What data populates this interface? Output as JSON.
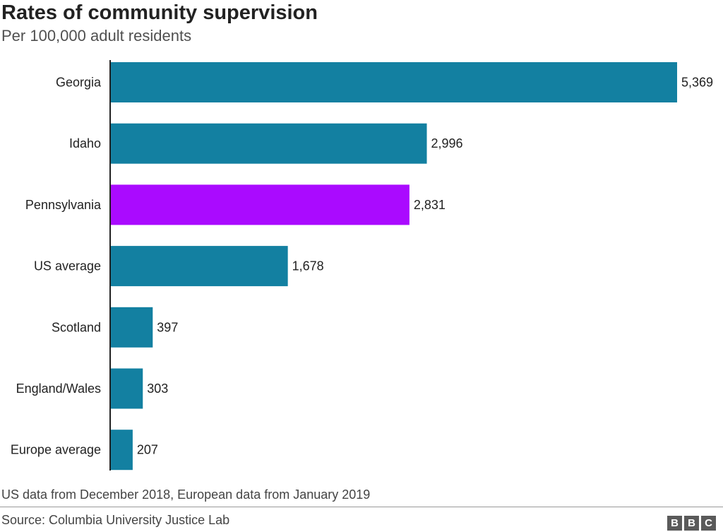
{
  "header": {
    "title": "Rates of community supervision",
    "subtitle": "Per 100,000 adult residents"
  },
  "footer": {
    "note": "US data from December 2018, European data from January 2019",
    "source": "Source: Columbia University Justice Lab",
    "logo": [
      "B",
      "B",
      "C"
    ]
  },
  "colors": {
    "bar": "#1380A1",
    "highlight": "#AA0AFF",
    "axis": "#222222"
  },
  "chart_data": {
    "type": "bar",
    "orientation": "horizontal",
    "title": "Rates of community supervision",
    "subtitle": "Per 100,000 adult residents",
    "categories": [
      "Georgia",
      "Idaho",
      "Pennsylvania",
      "US average",
      "Scotland",
      "England/Wales",
      "Europe average"
    ],
    "values": [
      5369,
      2996,
      2831,
      1678,
      397,
      303,
      207
    ],
    "value_labels": [
      "5,369",
      "2,996",
      "2,831",
      "1,678",
      "397",
      "303",
      "207"
    ],
    "highlighted": [
      "Pennsylvania"
    ],
    "xlim": [
      0,
      5369
    ],
    "grid": false,
    "legend": "none"
  }
}
